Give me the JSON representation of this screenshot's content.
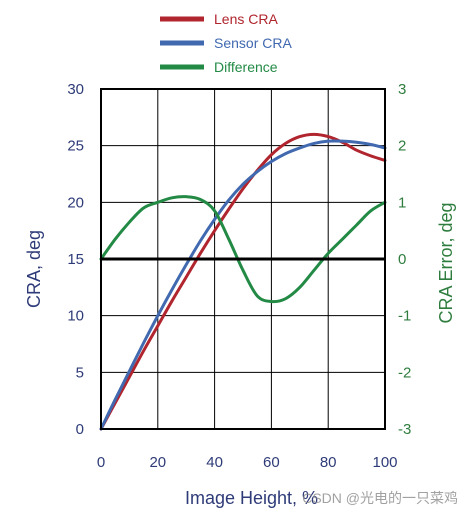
{
  "chart_data": {
    "type": "line",
    "title": "",
    "xlabel": "Image Height, %",
    "ylabel_left": "CRA, deg",
    "ylabel_right": "CRA Error, deg",
    "xlim": [
      0,
      100
    ],
    "ylim_left": [
      0,
      30
    ],
    "ylim_right": [
      -3,
      3
    ],
    "x_ticks": [
      "0",
      "20",
      "40",
      "60",
      "80",
      "100"
    ],
    "y_ticks_left": [
      "0",
      "5",
      "10",
      "15",
      "20",
      "25",
      "30"
    ],
    "y_ticks_right": [
      "-3",
      "-2",
      "-1",
      "0",
      "1",
      "2",
      "3"
    ],
    "grid": true,
    "legend_position": "top",
    "series": [
      {
        "name": "Lens CRA",
        "axis": "left",
        "color": "#b1252e",
        "x": [
          0,
          5,
          10,
          15,
          20,
          25,
          30,
          35,
          40,
          45,
          50,
          55,
          60,
          65,
          70,
          75,
          80,
          85,
          90,
          95,
          100
        ],
        "y": [
          0,
          2.3,
          4.6,
          6.9,
          9.1,
          11.3,
          13.4,
          15.5,
          17.5,
          19.4,
          21.2,
          22.8,
          24.2,
          25.2,
          25.8,
          26.0,
          25.8,
          25.3,
          24.6,
          24.1,
          23.7
        ]
      },
      {
        "name": "Sensor CRA",
        "axis": "left",
        "color": "#4169b0",
        "x": [
          0,
          5,
          10,
          15,
          20,
          25,
          30,
          35,
          40,
          45,
          50,
          55,
          60,
          65,
          70,
          75,
          80,
          85,
          90,
          95,
          100
        ],
        "y": [
          0,
          2.6,
          5.1,
          7.6,
          10.0,
          12.3,
          14.5,
          16.6,
          18.5,
          20.2,
          21.6,
          22.7,
          23.6,
          24.3,
          24.8,
          25.2,
          25.4,
          25.4,
          25.3,
          25.1,
          24.8
        ]
      },
      {
        "name": "Difference",
        "axis": "right",
        "color": "#238a45",
        "x": [
          0,
          5,
          10,
          15,
          20,
          25,
          30,
          35,
          40,
          45,
          50,
          55,
          60,
          65,
          70,
          75,
          80,
          85,
          90,
          95,
          100
        ],
        "y": [
          0.0,
          0.35,
          0.65,
          0.9,
          1.0,
          1.08,
          1.1,
          1.05,
          0.85,
          0.35,
          -0.2,
          -0.65,
          -0.75,
          -0.7,
          -0.5,
          -0.2,
          0.1,
          0.35,
          0.6,
          0.85,
          1.0
        ]
      }
    ]
  },
  "watermark": "CSDN @光电的一只菜鸡"
}
